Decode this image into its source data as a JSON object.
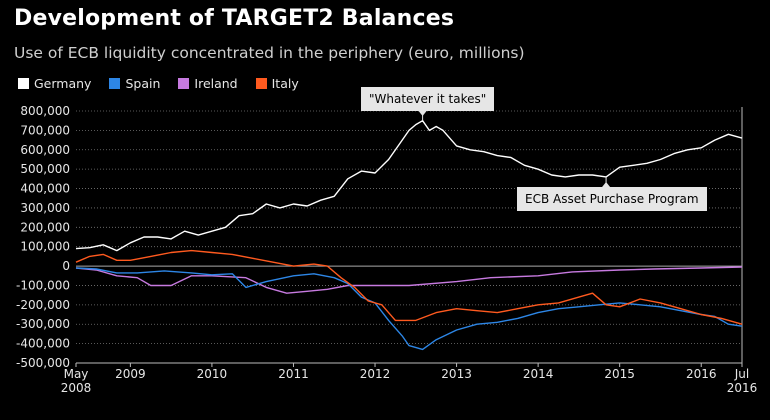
{
  "title": "Development of TARGET2 Balances",
  "subtitle": "Use of ECB liquidity concentrated in the periphery (euro, millions)",
  "chart_data": {
    "type": "line",
    "ylim": [
      -500000,
      800000
    ],
    "yticks": [
      800000,
      700000,
      600000,
      500000,
      400000,
      300000,
      200000,
      100000,
      0,
      -100000,
      -200000,
      -300000,
      -400000,
      -500000
    ],
    "ytick_labels": [
      "800,000",
      "700,000",
      "600,000",
      "500,000",
      "400,000",
      "300,000",
      "200,000",
      "100,000",
      "0",
      "-100,000",
      "-200,000",
      "-300,000",
      "-400,000",
      "-500,000"
    ],
    "xlim": [
      "2008-05",
      "2016-07"
    ],
    "xticks": [
      {
        "date": "2008-05",
        "label": "May",
        "label2": "2008"
      },
      {
        "date": "2009-01",
        "label": "2009"
      },
      {
        "date": "2010-01",
        "label": "2010"
      },
      {
        "date": "2011-01",
        "label": "2011"
      },
      {
        "date": "2012-01",
        "label": "2012"
      },
      {
        "date": "2013-01",
        "label": "2013"
      },
      {
        "date": "2014-01",
        "label": "2014"
      },
      {
        "date": "2015-01",
        "label": "2015"
      },
      {
        "date": "2016-01",
        "label": "2016"
      },
      {
        "date": "2016-07",
        "label": "Jul",
        "label2": "2016"
      }
    ],
    "grid": "horizontal dotted",
    "legend": "top-left",
    "series": [
      {
        "name": "Germany",
        "color": "#ffffff",
        "points": [
          [
            "2008-05",
            90000
          ],
          [
            "2008-07",
            95000
          ],
          [
            "2008-09",
            110000
          ],
          [
            "2008-11",
            80000
          ],
          [
            "2009-01",
            120000
          ],
          [
            "2009-03",
            150000
          ],
          [
            "2009-05",
            150000
          ],
          [
            "2009-07",
            140000
          ],
          [
            "2009-09",
            180000
          ],
          [
            "2009-11",
            160000
          ],
          [
            "2010-01",
            180000
          ],
          [
            "2010-03",
            200000
          ],
          [
            "2010-05",
            260000
          ],
          [
            "2010-07",
            270000
          ],
          [
            "2010-09",
            320000
          ],
          [
            "2010-11",
            300000
          ],
          [
            "2011-01",
            320000
          ],
          [
            "2011-03",
            310000
          ],
          [
            "2011-05",
            340000
          ],
          [
            "2011-07",
            360000
          ],
          [
            "2011-09",
            450000
          ],
          [
            "2011-11",
            490000
          ],
          [
            "2012-01",
            480000
          ],
          [
            "2012-03",
            550000
          ],
          [
            "2012-05",
            650000
          ],
          [
            "2012-06",
            700000
          ],
          [
            "2012-07",
            730000
          ],
          [
            "2012-08",
            750000
          ],
          [
            "2012-09",
            700000
          ],
          [
            "2012-10",
            720000
          ],
          [
            "2012-11",
            700000
          ],
          [
            "2013-01",
            620000
          ],
          [
            "2013-03",
            600000
          ],
          [
            "2013-05",
            590000
          ],
          [
            "2013-07",
            570000
          ],
          [
            "2013-09",
            560000
          ],
          [
            "2013-11",
            520000
          ],
          [
            "2014-01",
            500000
          ],
          [
            "2014-03",
            470000
          ],
          [
            "2014-05",
            460000
          ],
          [
            "2014-07",
            470000
          ],
          [
            "2014-09",
            470000
          ],
          [
            "2014-11",
            460000
          ],
          [
            "2015-01",
            510000
          ],
          [
            "2015-03",
            520000
          ],
          [
            "2015-05",
            530000
          ],
          [
            "2015-07",
            550000
          ],
          [
            "2015-09",
            580000
          ],
          [
            "2015-11",
            600000
          ],
          [
            "2016-01",
            610000
          ],
          [
            "2016-03",
            650000
          ],
          [
            "2016-05",
            680000
          ],
          [
            "2016-07",
            660000
          ]
        ]
      },
      {
        "name": "Spain",
        "color": "#2d86e6",
        "points": [
          [
            "2008-05",
            -10000
          ],
          [
            "2008-08",
            -15000
          ],
          [
            "2008-11",
            -35000
          ],
          [
            "2009-02",
            -35000
          ],
          [
            "2009-06",
            -25000
          ],
          [
            "2009-10",
            -35000
          ],
          [
            "2010-01",
            -45000
          ],
          [
            "2010-04",
            -40000
          ],
          [
            "2010-06",
            -110000
          ],
          [
            "2010-09",
            -80000
          ],
          [
            "2011-01",
            -50000
          ],
          [
            "2011-04",
            -40000
          ],
          [
            "2011-07",
            -60000
          ],
          [
            "2011-09",
            -90000
          ],
          [
            "2011-11",
            -160000
          ],
          [
            "2012-01",
            -190000
          ],
          [
            "2012-03",
            -280000
          ],
          [
            "2012-05",
            -360000
          ],
          [
            "2012-06",
            -410000
          ],
          [
            "2012-08",
            -430000
          ],
          [
            "2012-10",
            -380000
          ],
          [
            "2013-01",
            -330000
          ],
          [
            "2013-04",
            -300000
          ],
          [
            "2013-07",
            -290000
          ],
          [
            "2013-10",
            -270000
          ],
          [
            "2014-01",
            -240000
          ],
          [
            "2014-04",
            -220000
          ],
          [
            "2014-07",
            -210000
          ],
          [
            "2014-10",
            -200000
          ],
          [
            "2015-01",
            -190000
          ],
          [
            "2015-04",
            -200000
          ],
          [
            "2015-07",
            -210000
          ],
          [
            "2015-10",
            -230000
          ],
          [
            "2016-01",
            -250000
          ],
          [
            "2016-03",
            -260000
          ],
          [
            "2016-05",
            -300000
          ],
          [
            "2016-07",
            -310000
          ]
        ]
      },
      {
        "name": "Ireland",
        "color": "#c77ae0",
        "points": [
          [
            "2008-05",
            -10000
          ],
          [
            "2008-08",
            -20000
          ],
          [
            "2008-11",
            -50000
          ],
          [
            "2009-02",
            -60000
          ],
          [
            "2009-04",
            -100000
          ],
          [
            "2009-07",
            -100000
          ],
          [
            "2009-10",
            -50000
          ],
          [
            "2010-01",
            -50000
          ],
          [
            "2010-06",
            -60000
          ],
          [
            "2010-09",
            -110000
          ],
          [
            "2010-12",
            -140000
          ],
          [
            "2011-03",
            -130000
          ],
          [
            "2011-06",
            -120000
          ],
          [
            "2011-09",
            -100000
          ],
          [
            "2012-01",
            -100000
          ],
          [
            "2012-06",
            -100000
          ],
          [
            "2013-01",
            -80000
          ],
          [
            "2013-06",
            -60000
          ],
          [
            "2014-01",
            -50000
          ],
          [
            "2014-06",
            -30000
          ],
          [
            "2015-01",
            -20000
          ],
          [
            "2015-06",
            -15000
          ],
          [
            "2016-01",
            -10000
          ],
          [
            "2016-07",
            -5000
          ]
        ]
      },
      {
        "name": "Italy",
        "color": "#ff5a1f",
        "points": [
          [
            "2008-05",
            20000
          ],
          [
            "2008-07",
            50000
          ],
          [
            "2008-09",
            60000
          ],
          [
            "2008-11",
            30000
          ],
          [
            "2009-01",
            30000
          ],
          [
            "2009-04",
            50000
          ],
          [
            "2009-07",
            70000
          ],
          [
            "2009-10",
            80000
          ],
          [
            "2010-01",
            70000
          ],
          [
            "2010-04",
            60000
          ],
          [
            "2010-07",
            40000
          ],
          [
            "2010-10",
            20000
          ],
          [
            "2011-01",
            0
          ],
          [
            "2011-04",
            10000
          ],
          [
            "2011-06",
            0
          ],
          [
            "2011-08",
            -60000
          ],
          [
            "2011-10",
            -110000
          ],
          [
            "2011-12",
            -180000
          ],
          [
            "2012-02",
            -200000
          ],
          [
            "2012-04",
            -280000
          ],
          [
            "2012-07",
            -280000
          ],
          [
            "2012-10",
            -240000
          ],
          [
            "2013-01",
            -220000
          ],
          [
            "2013-04",
            -230000
          ],
          [
            "2013-07",
            -240000
          ],
          [
            "2013-10",
            -220000
          ],
          [
            "2014-01",
            -200000
          ],
          [
            "2014-04",
            -190000
          ],
          [
            "2014-07",
            -160000
          ],
          [
            "2014-09",
            -140000
          ],
          [
            "2014-11",
            -200000
          ],
          [
            "2015-01",
            -210000
          ],
          [
            "2015-04",
            -170000
          ],
          [
            "2015-07",
            -190000
          ],
          [
            "2015-10",
            -220000
          ],
          [
            "2016-01",
            -250000
          ],
          [
            "2016-04",
            -270000
          ],
          [
            "2016-07",
            -300000
          ]
        ]
      }
    ],
    "annotations": [
      {
        "text": "\"Whatever it takes\"",
        "date": "2012-08",
        "value": 750000
      },
      {
        "text": "ECB Asset Purchase Program",
        "date": "2014-11",
        "value": 460000
      }
    ]
  }
}
